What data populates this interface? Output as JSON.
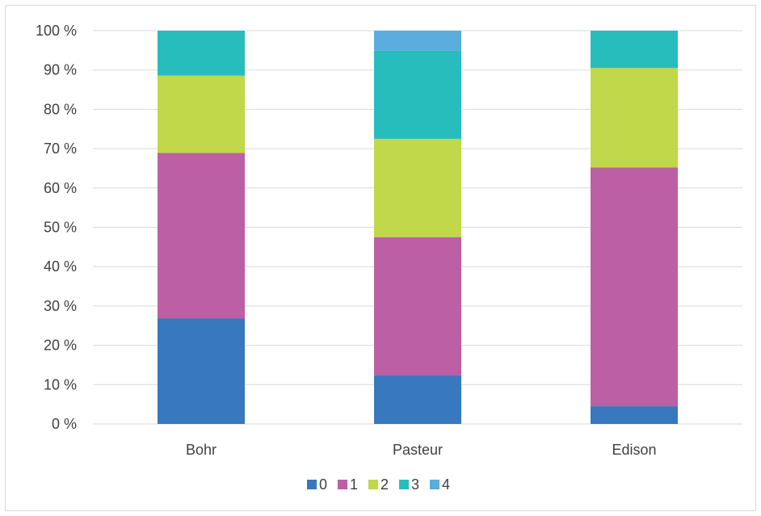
{
  "chart_data": {
    "type": "bar",
    "stacked": "percent",
    "categories": [
      "Bohr",
      "Pasteur",
      "Edison"
    ],
    "series": [
      {
        "name": "0",
        "color": "#3878be",
        "values": [
          26.8,
          12.4,
          4.5
        ]
      },
      {
        "name": "1",
        "color": "#bc5fa4",
        "values": [
          42.1,
          35.1,
          60.7
        ]
      },
      {
        "name": "2",
        "color": "#c0d849",
        "values": [
          19.7,
          25.0,
          25.3
        ]
      },
      {
        "name": "3",
        "color": "#27bdbd",
        "values": [
          11.4,
          22.4,
          9.5
        ]
      },
      {
        "name": "4",
        "color": "#5aaddc",
        "values": [
          0,
          5.1,
          0
        ]
      }
    ],
    "ylim": [
      0,
      100
    ],
    "yticks": [
      0,
      10,
      20,
      30,
      40,
      50,
      60,
      70,
      80,
      90,
      100
    ],
    "ytick_suffix": " %",
    "grid": true,
    "legend_position": "bottom"
  }
}
